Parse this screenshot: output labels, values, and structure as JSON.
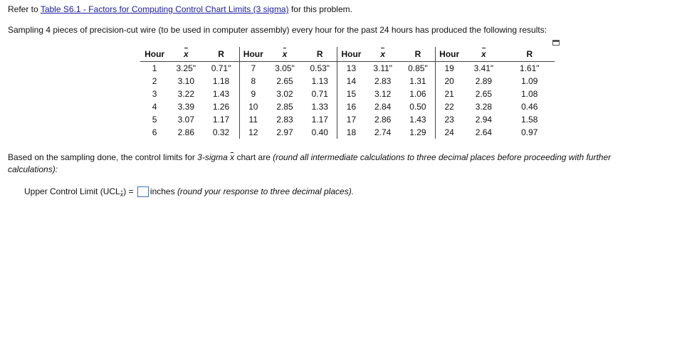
{
  "intro": {
    "prefix": "Refer to ",
    "link_text": "Table S6.1 - Factors for Computing Control Chart Limits (3 sigma)",
    "suffix": " for this problem."
  },
  "problem_statement": "Sampling 4 pieces of precision-cut wire (to be used in computer assembly) every hour for the past 24 hours has produced the following results:",
  "table": {
    "headers": [
      "Hour",
      "x",
      "R",
      "Hour",
      "x",
      "R",
      "Hour",
      "x",
      "R",
      "Hour",
      "x",
      "R"
    ],
    "rows": [
      [
        "1",
        "3.25\"",
        "0.71\"",
        "7",
        "3.05\"",
        "0.53\"",
        "13",
        "3.11\"",
        "0.85\"",
        "19",
        "3.41\"",
        "1.61\""
      ],
      [
        "2",
        "3.10",
        "1.18",
        "8",
        "2.65",
        "1.13",
        "14",
        "2.83",
        "1.31",
        "20",
        "2.89",
        "1.09"
      ],
      [
        "3",
        "3.22",
        "1.43",
        "9",
        "3.02",
        "0.71",
        "15",
        "3.12",
        "1.06",
        "21",
        "2.65",
        "1.08"
      ],
      [
        "4",
        "3.39",
        "1.26",
        "10",
        "2.85",
        "1.33",
        "16",
        "2.84",
        "0.50",
        "22",
        "3.28",
        "0.46"
      ],
      [
        "5",
        "3.07",
        "1.17",
        "11",
        "2.83",
        "1.17",
        "17",
        "2.86",
        "1.43",
        "23",
        "2.94",
        "1.58"
      ],
      [
        "6",
        "2.86",
        "0.32",
        "12",
        "2.97",
        "0.40",
        "18",
        "2.74",
        "1.29",
        "24",
        "2.64",
        "0.97"
      ]
    ]
  },
  "based_on": {
    "part1": "Based on the sampling done, the control limits for ",
    "sigma": "3-sigma ",
    "x": "x",
    "part2": " chart are ",
    "note_line1": "(round all intermediate calculations to three decimal places before proceeding with further",
    "note_line2": "calculations):"
  },
  "ucl": {
    "label": "Upper Control Limit (UCL",
    "sub": "x",
    "close": ") =",
    "value": "",
    "unit": "inches",
    "hint": "(round your response to three decimal places)."
  }
}
